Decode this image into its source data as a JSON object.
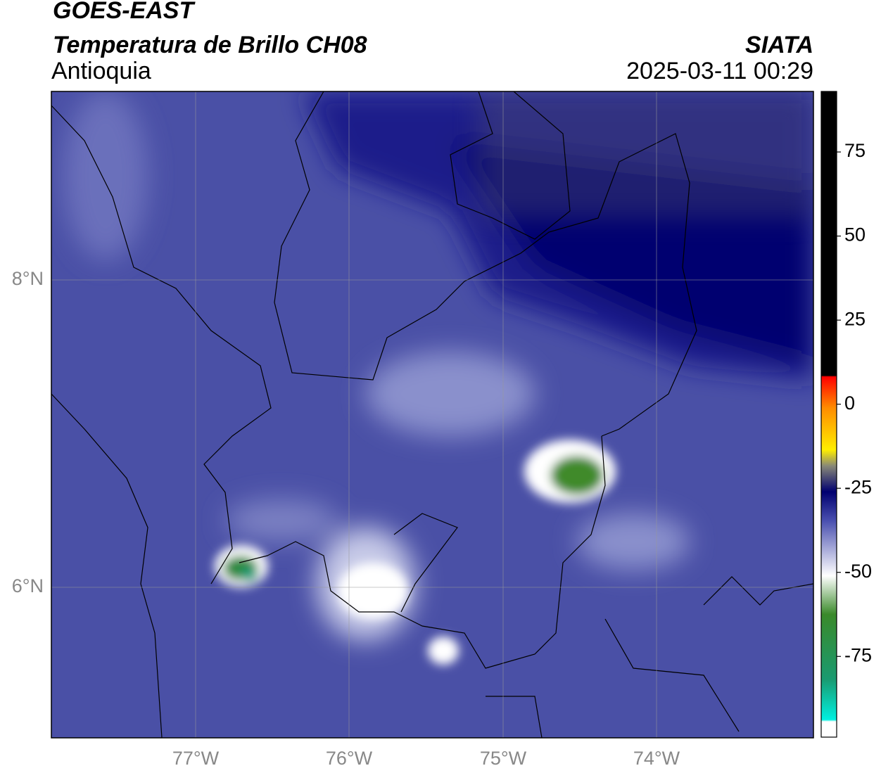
{
  "header": {
    "product": "GOES-EAST",
    "title": "Temperatura de Brillo CH08",
    "region": "Antioquia",
    "source": "SIATA",
    "datetime": "2025-03-11 00:29"
  },
  "map": {
    "lon_labels": [
      "77°W",
      "76°W",
      "75°W",
      "74°W"
    ],
    "lat_labels": [
      "8°N",
      "6°N"
    ]
  },
  "colorbar": {
    "range": [
      -99,
      93
    ],
    "ticks": [
      75,
      50,
      25,
      0,
      -25,
      -50,
      -75
    ]
  }
}
